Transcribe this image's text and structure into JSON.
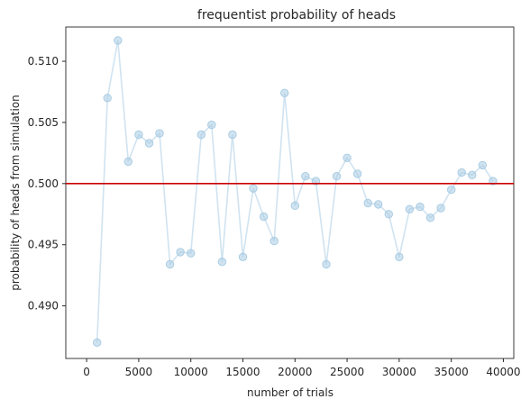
{
  "chart_data": {
    "type": "line",
    "title": "frequentist probability of heads",
    "xlabel": "number of trials",
    "ylabel": "probability of heads from simulation",
    "xlim": [
      -2000,
      41000
    ],
    "ylim": [
      0.4857,
      0.5128
    ],
    "xticks": [
      0,
      5000,
      10000,
      15000,
      20000,
      25000,
      30000,
      35000,
      40000
    ],
    "xtick_labels": [
      "0",
      "5000",
      "10000",
      "15000",
      "20000",
      "25000",
      "30000",
      "35000",
      "40000"
    ],
    "yticks": [
      0.49,
      0.495,
      0.5,
      0.505,
      0.51
    ],
    "ytick_labels": [
      "0.490",
      "0.495",
      "0.500",
      "0.505",
      "0.510"
    ],
    "grid": false,
    "series": [
      {
        "marker": "circle",
        "color": "#a9cce3",
        "x": [
          1000,
          2000,
          3000,
          4000,
          5000,
          6000,
          7000,
          8000,
          9000,
          10000,
          11000,
          12000,
          13000,
          14000,
          15000,
          16000,
          17000,
          18000,
          19000,
          20000,
          21000,
          22000,
          23000,
          24000,
          25000,
          26000,
          27000,
          28000,
          29000,
          30000,
          31000,
          32000,
          33000,
          34000,
          35000,
          36000,
          37000,
          38000,
          39000
        ],
        "y": [
          0.487,
          0.507,
          0.5117,
          0.5018,
          0.504,
          0.5033,
          0.5041,
          0.4934,
          0.4944,
          0.4943,
          0.504,
          0.5048,
          0.4936,
          0.504,
          0.494,
          0.4996,
          0.4973,
          0.4953,
          0.5074,
          0.4982,
          0.5006,
          0.5002,
          0.4934,
          0.5006,
          0.5021,
          0.5008,
          0.4984,
          0.4983,
          0.4975,
          0.494,
          0.4979,
          0.4981,
          0.4972,
          0.498,
          0.4995,
          0.5009,
          0.5007,
          0.5015,
          0.5002
        ]
      }
    ],
    "reference_line": {
      "y": 0.5,
      "color": "#cc0000"
    }
  }
}
